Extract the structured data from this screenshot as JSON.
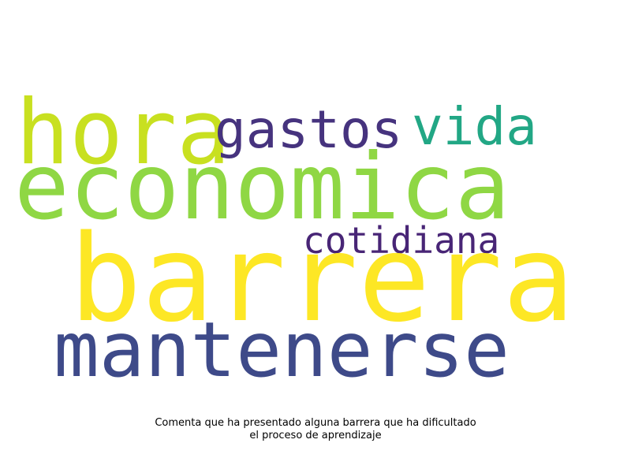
{
  "words": [
    {
      "text": "hora",
      "color": "#c8e020"
    },
    {
      "text": "gastos",
      "color": "#46337e"
    },
    {
      "text": "vida",
      "color": "#22a785"
    },
    {
      "text": "economica",
      "color": "#8fd744"
    },
    {
      "text": "cotidiana",
      "color": "#482576"
    },
    {
      "text": "barrera",
      "color": "#fde725"
    },
    {
      "text": "mantenerse",
      "color": "#3e4a89"
    }
  ],
  "caption": {
    "line1": "Comenta que ha presentado alguna barrera que ha dificultado",
    "line2": "el proceso de aprendizaje"
  }
}
